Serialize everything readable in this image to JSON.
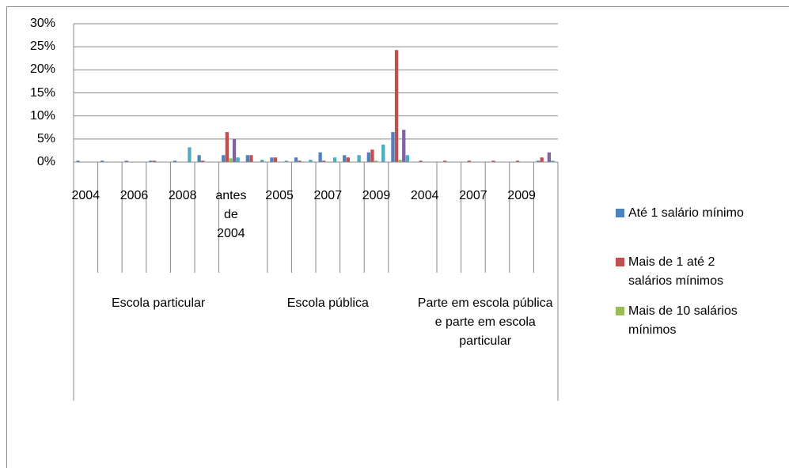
{
  "chart_data": {
    "type": "bar",
    "groups": [
      {
        "name": "Escola particular",
        "categories": [
          "2004",
          null,
          "2006",
          null,
          "2008",
          null,
          "antes de 2004"
        ]
      },
      {
        "name": "Escola pública",
        "categories": [
          null,
          "2005",
          null,
          "2007",
          null,
          "2009",
          null
        ]
      },
      {
        "name": "Parte em escola pública e parte em escola particular",
        "categories": [
          "2004",
          null,
          "2007",
          null,
          "2009",
          null
        ]
      }
    ],
    "series": [
      {
        "name": "Até 1 salário mínimo",
        "color": "#4f81bd",
        "values": [
          0.3,
          0.3,
          0.3,
          0.3,
          0.3,
          1.5,
          1.5,
          1.5,
          1,
          1,
          2.1,
          1.5,
          2.1,
          6.5,
          0,
          0,
          0,
          0,
          0,
          0.3
        ]
      },
      {
        "name": "Mais de 1 até 2 salários mínimos",
        "color": "#c0504d",
        "values": [
          0,
          0,
          0,
          0.3,
          0,
          0.3,
          6.5,
          1.5,
          1,
          0.3,
          0.3,
          1,
          2.7,
          24.3,
          0.3,
          0.3,
          0.3,
          0.3,
          0.3,
          1
        ]
      },
      {
        "name": "Mais de 10 salários mínimos",
        "color": "#9bbb59",
        "values": [
          0,
          0,
          0,
          0,
          0,
          0,
          0.8,
          0,
          0,
          0,
          0,
          0,
          0.3,
          0.5,
          0,
          0,
          0,
          0,
          0,
          0
        ]
      },
      {
        "color": "#8064a2",
        "values": [
          0,
          0,
          0,
          0,
          0,
          0,
          5,
          0,
          0,
          0,
          0,
          0,
          0,
          7,
          0,
          0,
          0,
          0,
          0,
          2.1
        ]
      },
      {
        "color": "#4bacc6",
        "values": [
          0,
          0,
          0,
          0,
          3.2,
          0,
          1,
          0.5,
          0.3,
          0.5,
          1,
          1.5,
          3.8,
          1.5,
          0,
          0,
          0,
          0,
          0,
          0.3
        ]
      }
    ],
    "ylim": [
      0,
      30
    ],
    "yticks": [
      {
        "value": 0,
        "label": "0%"
      },
      {
        "value": 5,
        "label": "5%"
      },
      {
        "value": 10,
        "label": "10%"
      },
      {
        "value": 15,
        "label": "15%"
      },
      {
        "value": 20,
        "label": "20%"
      },
      {
        "value": 25,
        "label": "25%"
      },
      {
        "value": 30,
        "label": "30%"
      }
    ],
    "grid": true
  }
}
